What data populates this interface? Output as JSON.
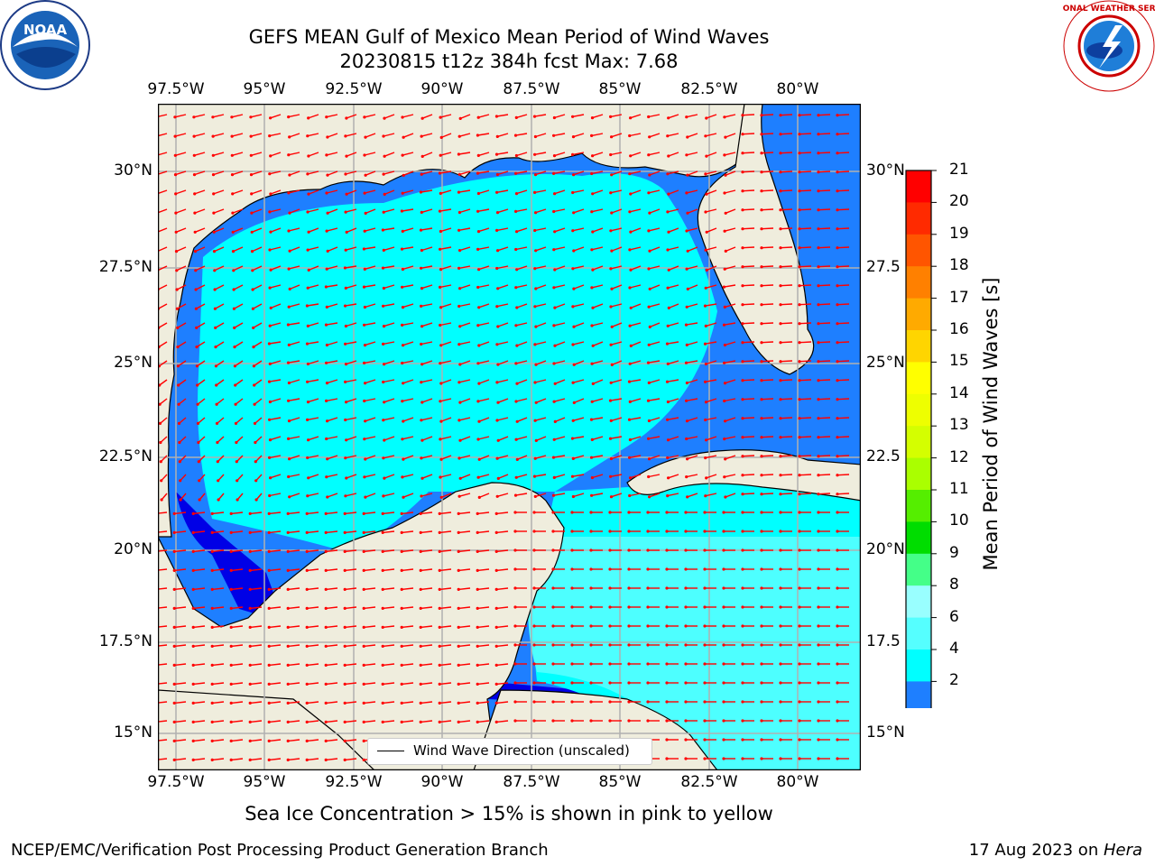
{
  "header": {
    "title": "GEFS MEAN Gulf of Mexico Mean Period of Wind Waves",
    "subtitle": "20230815 t12z 384h fcst   Max: 7.68"
  },
  "logos": {
    "left": {
      "icon": "noaa-logo-icon",
      "text": "NOAA"
    },
    "right": {
      "icon": "nws-logo-icon",
      "text": "NATIONAL WEATHER SERVICE"
    }
  },
  "map": {
    "lon_ticks_top": [
      "97.5°W",
      "95°W",
      "92.5°W",
      "90°W",
      "87.5°W",
      "85°W",
      "82.5°W",
      "80°W"
    ],
    "lon_ticks_bottom": [
      "97.5°W",
      "95°W",
      "92.5°W",
      "90°W",
      "87.5°W",
      "85°W",
      "82.5°W",
      "80°W"
    ],
    "lat_ticks_left": [
      "30°N",
      "27.5°N",
      "25°N",
      "22.5°N",
      "20°N",
      "17.5°N",
      "15°N"
    ],
    "lat_ticks_right": [
      "30°N",
      "27.5",
      "25°N",
      "22.5",
      "20°N",
      "17.5",
      "15°N"
    ],
    "legend_label": "Wind Wave Direction (unscaled)",
    "colors": {
      "land": "#efeddd",
      "ocean_2_4": "#1e7fff",
      "ocean_4_6": "#00ffff",
      "ocean_6_8": "#4dffff",
      "ocean_low": "#0000e6",
      "arrow": "#ff0000"
    }
  },
  "colorbar": {
    "title": "Mean Period of Wind Waves [s]",
    "labels": [
      "21",
      "20",
      "19",
      "18",
      "17",
      "16",
      "15",
      "14",
      "13",
      "12",
      "11",
      "10",
      "9",
      "8",
      "6",
      "4",
      "2"
    ],
    "colors": [
      "#ff0000",
      "#ff2a00",
      "#ff5500",
      "#ff8000",
      "#ffaa00",
      "#ffd500",
      "#ffff00",
      "#eeff00",
      "#d4ff00",
      "#aaff00",
      "#55ee00",
      "#00dd00",
      "#44ff88",
      "#99ffff",
      "#55ffff",
      "#00ffff",
      "#1e7fff"
    ],
    "extend_color": "#0000ee"
  },
  "footer": {
    "ice_note": "Sea Ice Concentration > 15% is shown in pink to yellow",
    "left": "NCEP/EMC/Verification Post Processing Product Generation Branch",
    "right_date": "17 Aug 2023 on ",
    "right_machine": "Hera"
  }
}
